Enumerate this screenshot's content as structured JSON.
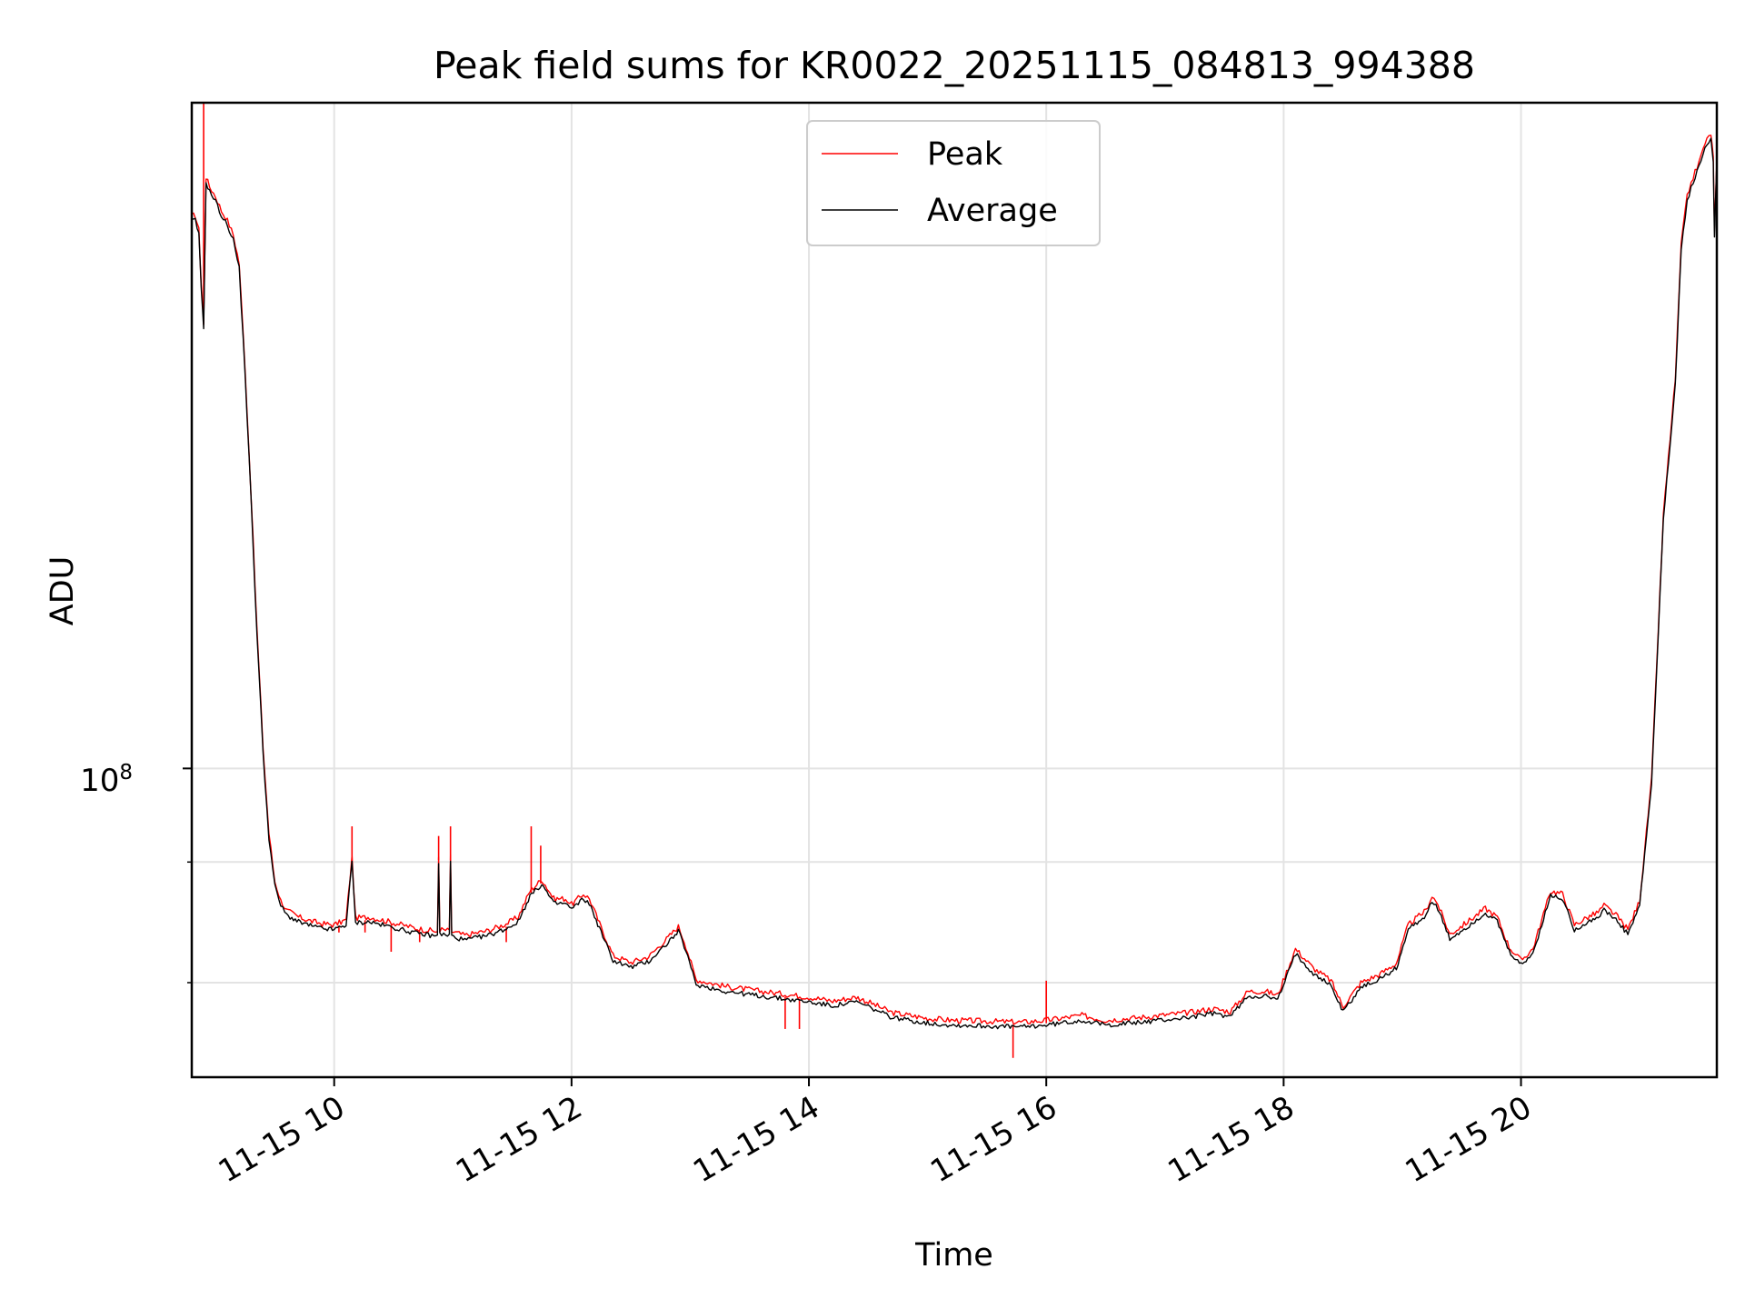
{
  "chart_data": {
    "type": "line",
    "title": "Peak field sums for KR0022_20251115_084813_994388",
    "xlabel": "Time",
    "ylabel": "ADU",
    "y_scale": "log",
    "grid": true,
    "legend_location": "upper center",
    "x_unit": "hours (2025-11-15)",
    "xlim": [
      8.8,
      21.65
    ],
    "ylim_log10": [
      7.68,
      8.69
    ],
    "x_ticks": [
      {
        "value": 10,
        "label": "11-15 10"
      },
      {
        "value": 12,
        "label": "11-15 12"
      },
      {
        "value": 14,
        "label": "11-15 14"
      },
      {
        "value": 16,
        "label": "11-15 16"
      },
      {
        "value": 18,
        "label": "11-15 18"
      },
      {
        "value": 20,
        "label": "11-15 20"
      }
    ],
    "y_major_tick": {
      "log10": 8,
      "base": "10",
      "exponent": "8"
    },
    "y_minor_ticks_log10": [
      7.778,
      7.903
    ],
    "series": [
      {
        "name": "Peak",
        "color": "#ff0000",
        "spikes": [
          [
            8.9,
            8.69
          ],
          [
            10.04,
            7.83
          ],
          [
            10.15,
            7.94
          ],
          [
            10.26,
            7.83
          ],
          [
            10.48,
            7.81
          ],
          [
            10.72,
            7.82
          ],
          [
            10.88,
            7.93
          ],
          [
            10.98,
            7.94
          ],
          [
            11.45,
            7.82
          ],
          [
            11.66,
            7.94
          ],
          [
            11.74,
            7.92
          ],
          [
            13.8,
            7.73
          ],
          [
            13.92,
            7.73
          ],
          [
            15.72,
            7.7
          ],
          [
            16.0,
            7.78
          ]
        ]
      },
      {
        "name": "Average",
        "color": "#000000",
        "points": [
          [
            8.8,
            8.57
          ],
          [
            8.83,
            8.57
          ],
          [
            8.86,
            8.555
          ],
          [
            8.88,
            8.5
          ],
          [
            8.9,
            8.46
          ],
          [
            8.92,
            8.61
          ],
          [
            8.95,
            8.6
          ],
          [
            9.0,
            8.59
          ],
          [
            9.05,
            8.575
          ],
          [
            9.1,
            8.565
          ],
          [
            9.15,
            8.55
          ],
          [
            9.2,
            8.52
          ],
          [
            9.25,
            8.41
          ],
          [
            9.3,
            8.28
          ],
          [
            9.35,
            8.14
          ],
          [
            9.4,
            8.02
          ],
          [
            9.45,
            7.93
          ],
          [
            9.5,
            7.88
          ],
          [
            9.55,
            7.86
          ],
          [
            9.6,
            7.85
          ],
          [
            9.7,
            7.843
          ],
          [
            9.8,
            7.839
          ],
          [
            9.9,
            7.836
          ],
          [
            10.0,
            7.835
          ],
          [
            10.1,
            7.84
          ],
          [
            10.15,
            7.905
          ],
          [
            10.18,
            7.842
          ],
          [
            10.3,
            7.843
          ],
          [
            10.5,
            7.837
          ],
          [
            10.7,
            7.831
          ],
          [
            10.87,
            7.828
          ],
          [
            10.88,
            7.905
          ],
          [
            10.89,
            7.83
          ],
          [
            10.97,
            7.829
          ],
          [
            10.98,
            7.905
          ],
          [
            10.99,
            7.828
          ],
          [
            11.1,
            7.824
          ],
          [
            11.3,
            7.829
          ],
          [
            11.45,
            7.836
          ],
          [
            11.55,
            7.843
          ],
          [
            11.65,
            7.87
          ],
          [
            11.75,
            7.882
          ],
          [
            11.85,
            7.862
          ],
          [
            11.95,
            7.862
          ],
          [
            12.0,
            7.856
          ],
          [
            12.1,
            7.867
          ],
          [
            12.15,
            7.862
          ],
          [
            12.25,
            7.832
          ],
          [
            12.35,
            7.803
          ],
          [
            12.5,
            7.796
          ],
          [
            12.65,
            7.802
          ],
          [
            12.8,
            7.82
          ],
          [
            12.9,
            7.833
          ],
          [
            12.95,
            7.818
          ],
          [
            13.05,
            7.778
          ],
          [
            13.3,
            7.771
          ],
          [
            13.6,
            7.766
          ],
          [
            13.8,
            7.763
          ],
          [
            14.0,
            7.76
          ],
          [
            14.2,
            7.756
          ],
          [
            14.4,
            7.76
          ],
          [
            14.5,
            7.755
          ],
          [
            14.7,
            7.744
          ],
          [
            15.0,
            7.738
          ],
          [
            15.2,
            7.736
          ],
          [
            15.5,
            7.735
          ],
          [
            15.8,
            7.734
          ],
          [
            16.0,
            7.736
          ],
          [
            16.3,
            7.741
          ],
          [
            16.5,
            7.736
          ],
          [
            16.8,
            7.739
          ],
          [
            17.2,
            7.744
          ],
          [
            17.4,
            7.748
          ],
          [
            17.55,
            7.745
          ],
          [
            17.7,
            7.766
          ],
          [
            17.85,
            7.766
          ],
          [
            17.95,
            7.762
          ],
          [
            18.1,
            7.81
          ],
          [
            18.25,
            7.79
          ],
          [
            18.4,
            7.777
          ],
          [
            18.5,
            7.75
          ],
          [
            18.65,
            7.775
          ],
          [
            18.8,
            7.783
          ],
          [
            18.95,
            7.795
          ],
          [
            19.05,
            7.835
          ],
          [
            19.2,
            7.85
          ],
          [
            19.25,
            7.865
          ],
          [
            19.3,
            7.856
          ],
          [
            19.4,
            7.825
          ],
          [
            19.55,
            7.838
          ],
          [
            19.7,
            7.852
          ],
          [
            19.8,
            7.843
          ],
          [
            19.9,
            7.812
          ],
          [
            20.0,
            7.798
          ],
          [
            20.1,
            7.81
          ],
          [
            20.25,
            7.87
          ],
          [
            20.35,
            7.867
          ],
          [
            20.45,
            7.835
          ],
          [
            20.55,
            7.842
          ],
          [
            20.65,
            7.848
          ],
          [
            20.7,
            7.855
          ],
          [
            20.8,
            7.845
          ],
          [
            20.9,
            7.83
          ],
          [
            21.0,
            7.86
          ],
          [
            21.1,
            7.985
          ],
          [
            21.2,
            8.26
          ],
          [
            21.3,
            8.4
          ],
          [
            21.35,
            8.54
          ],
          [
            21.4,
            8.59
          ],
          [
            21.45,
            8.61
          ],
          [
            21.5,
            8.625
          ],
          [
            21.55,
            8.645
          ],
          [
            21.6,
            8.655
          ],
          [
            21.62,
            8.63
          ],
          [
            21.63,
            8.555
          ],
          [
            21.65,
            8.63
          ]
        ]
      }
    ]
  }
}
